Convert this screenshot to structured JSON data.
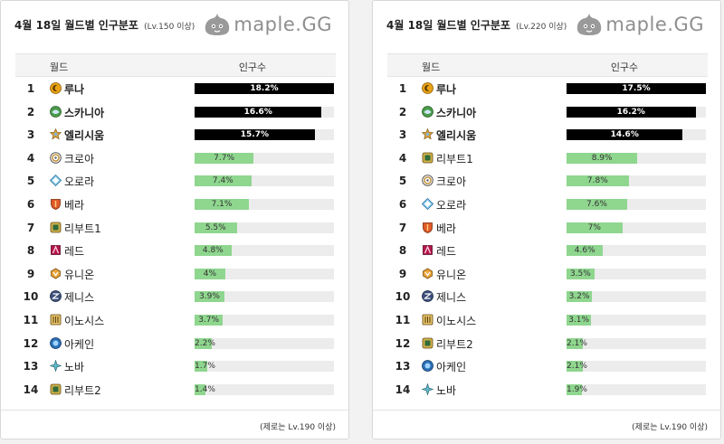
{
  "brand": {
    "logo_text": "maple.GG",
    "logo_icon": "blob-mascot-icon"
  },
  "chart_data": [
    {
      "type": "bar",
      "orientation": "horizontal",
      "title": "4월 18일 월드별 인구분포",
      "subtitle": "(Lv.150 이상)",
      "column_headers": {
        "world": "월드",
        "population": "인구수"
      },
      "footnote": "(제로는 Lv.190 이상)",
      "xlim": [
        0,
        18.2
      ],
      "rows": [
        {
          "rank": "1",
          "world": "루나",
          "icon": "luna-icon",
          "value": 18.2,
          "label": "18.2%"
        },
        {
          "rank": "2",
          "world": "스카니아",
          "icon": "scania-icon",
          "value": 16.6,
          "label": "16.6%"
        },
        {
          "rank": "3",
          "world": "엘리시움",
          "icon": "elysium-icon",
          "value": 15.7,
          "label": "15.7%"
        },
        {
          "rank": "4",
          "world": "크로아",
          "icon": "croa-icon",
          "value": 7.7,
          "label": "7.7%"
        },
        {
          "rank": "5",
          "world": "오로라",
          "icon": "aurora-icon",
          "value": 7.4,
          "label": "7.4%"
        },
        {
          "rank": "6",
          "world": "베라",
          "icon": "bera-icon",
          "value": 7.1,
          "label": "7.1%"
        },
        {
          "rank": "7",
          "world": "리부트1",
          "icon": "reboot-icon",
          "value": 5.5,
          "label": "5.5%"
        },
        {
          "rank": "8",
          "world": "레드",
          "icon": "red-icon",
          "value": 4.8,
          "label": "4.8%"
        },
        {
          "rank": "9",
          "world": "유니온",
          "icon": "union-icon",
          "value": 4,
          "label": "4%"
        },
        {
          "rank": "10",
          "world": "제니스",
          "icon": "zenith-icon",
          "value": 3.9,
          "label": "3.9%"
        },
        {
          "rank": "11",
          "world": "이노시스",
          "icon": "enosis-icon",
          "value": 3.7,
          "label": "3.7%"
        },
        {
          "rank": "12",
          "world": "아케인",
          "icon": "arcane-icon",
          "value": 2.2,
          "label": "2.2%"
        },
        {
          "rank": "13",
          "world": "노바",
          "icon": "nova-icon",
          "value": 1.7,
          "label": "1.7%"
        },
        {
          "rank": "14",
          "world": "리부트2",
          "icon": "reboot-icon",
          "value": 1.4,
          "label": "1.4%"
        }
      ]
    },
    {
      "type": "bar",
      "orientation": "horizontal",
      "title": "4월 18일 월드별 인구분포",
      "subtitle": "(Lv.220 이상)",
      "column_headers": {
        "world": "월드",
        "population": "인구수"
      },
      "footnote": "(제로는 Lv.190 이상)",
      "xlim": [
        0,
        17.5
      ],
      "rows": [
        {
          "rank": "1",
          "world": "루나",
          "icon": "luna-icon",
          "value": 17.5,
          "label": "17.5%"
        },
        {
          "rank": "2",
          "world": "스카니아",
          "icon": "scania-icon",
          "value": 16.2,
          "label": "16.2%"
        },
        {
          "rank": "3",
          "world": "엘리시움",
          "icon": "elysium-icon",
          "value": 14.6,
          "label": "14.6%"
        },
        {
          "rank": "4",
          "world": "리부트1",
          "icon": "reboot-icon",
          "value": 8.9,
          "label": "8.9%"
        },
        {
          "rank": "5",
          "world": "크로아",
          "icon": "croa-icon",
          "value": 7.8,
          "label": "7.8%"
        },
        {
          "rank": "6",
          "world": "오로라",
          "icon": "aurora-icon",
          "value": 7.6,
          "label": "7.6%"
        },
        {
          "rank": "7",
          "world": "베라",
          "icon": "bera-icon",
          "value": 7,
          "label": "7%"
        },
        {
          "rank": "8",
          "world": "레드",
          "icon": "red-icon",
          "value": 4.6,
          "label": "4.6%"
        },
        {
          "rank": "9",
          "world": "유니온",
          "icon": "union-icon",
          "value": 3.5,
          "label": "3.5%"
        },
        {
          "rank": "10",
          "world": "제니스",
          "icon": "zenith-icon",
          "value": 3.2,
          "label": "3.2%"
        },
        {
          "rank": "11",
          "world": "이노시스",
          "icon": "enosis-icon",
          "value": 3.1,
          "label": "3.1%"
        },
        {
          "rank": "12",
          "world": "리부트2",
          "icon": "reboot-icon",
          "value": 2.1,
          "label": "2.1%"
        },
        {
          "rank": "13",
          "world": "아케인",
          "icon": "arcane-icon",
          "value": 2.1,
          "label": "2.1%"
        },
        {
          "rank": "14",
          "world": "노바",
          "icon": "nova-icon",
          "value": 1.9,
          "label": "1.9%"
        }
      ]
    }
  ],
  "colors": {
    "top_bar": "#000000",
    "bar": "#8fd68f",
    "track": "#ececec",
    "header_bg": "#f4f4f4"
  }
}
